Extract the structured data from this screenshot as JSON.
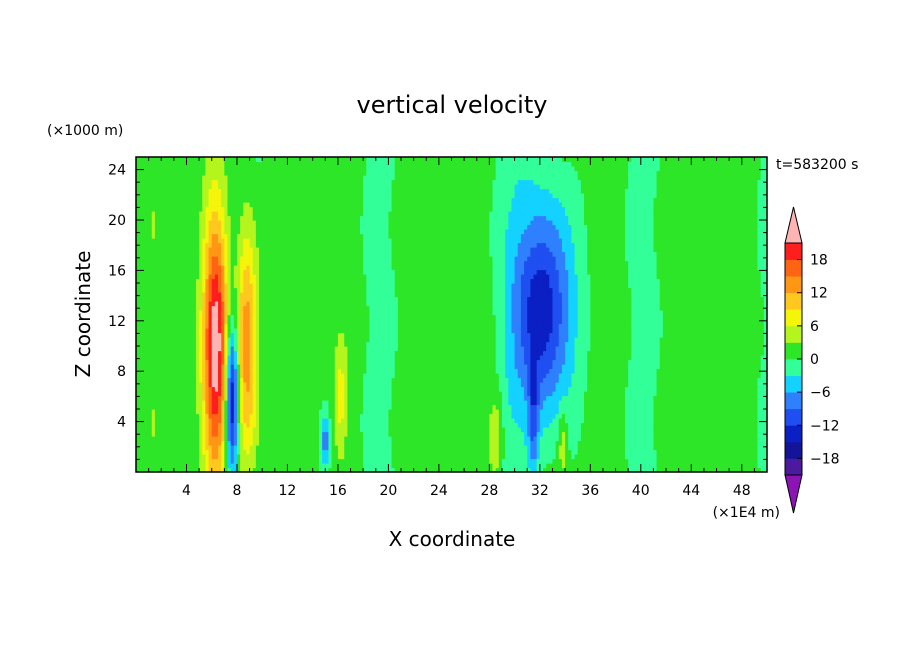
{
  "chart_data": {
    "type": "heatmap",
    "title": "vertical velocity",
    "xlabel": "X coordinate",
    "ylabel": "Z coordinate",
    "x_unit": "(×1E4 m)",
    "y_unit": "(×1000 m)",
    "time_label": "t=583200 s",
    "xlim": [
      0,
      50
    ],
    "ylim": [
      0,
      25
    ],
    "x_ticks": [
      4,
      8,
      12,
      16,
      20,
      24,
      28,
      32,
      36,
      40,
      44,
      48
    ],
    "y_ticks": [
      4,
      8,
      12,
      16,
      20,
      24
    ],
    "colorbar": {
      "levels": [
        -21,
        -18,
        -15,
        -12,
        -9,
        -6,
        -3,
        0,
        3,
        6,
        9,
        12,
        15,
        18,
        21
      ],
      "tick_labels": [
        "18",
        "12",
        "6",
        "0",
        "−6",
        "−12",
        "−18"
      ],
      "tick_values": [
        18,
        12,
        6,
        0,
        -6,
        -12,
        -18
      ],
      "colors": [
        "#4b1a9e",
        "#14149b",
        "#0a1fc4",
        "#1f4ff0",
        "#2e80ff",
        "#14d2ff",
        "#33ff99",
        "#2ee628",
        "#b4f51e",
        "#f5f50a",
        "#ffc81e",
        "#ff9614",
        "#ff6414",
        "#ff1e1e"
      ],
      "under_color": "#8c14b4",
      "over_color": "#ffb4b4"
    },
    "background_value": 1,
    "features": [
      {
        "kind": "updraft",
        "x": 6.3,
        "z": 10,
        "sx": 0.7,
        "sz": 7.5,
        "amp": 22
      },
      {
        "kind": "downdraft",
        "x": 7.6,
        "z": 6,
        "sx": 0.35,
        "sz": 4.5,
        "amp": -18
      },
      {
        "kind": "updraft",
        "x": 8.8,
        "z": 10,
        "sx": 0.6,
        "sz": 7.0,
        "amp": 15
      },
      {
        "kind": "downdraft",
        "x": 15.0,
        "z": 2.5,
        "sx": 0.25,
        "sz": 1.5,
        "amp": -9
      },
      {
        "kind": "updraft",
        "x": 16.2,
        "z": 6,
        "sx": 0.35,
        "sz": 3.0,
        "amp": 6
      },
      {
        "kind": "updraft",
        "x": 28.5,
        "z": 3,
        "sx": 0.4,
        "sz": 2.5,
        "amp": 6
      },
      {
        "kind": "downdraft",
        "x": 32.3,
        "z": 13,
        "sx": 1.6,
        "sz": 6.5,
        "amp": -16
      },
      {
        "kind": "downdraft",
        "x": 31.5,
        "z": 4,
        "sx": 0.3,
        "sz": 3.0,
        "amp": -8
      },
      {
        "kind": "updraft",
        "x": 33.8,
        "z": 2.5,
        "sx": 0.25,
        "sz": 2.0,
        "amp": 5
      }
    ]
  }
}
